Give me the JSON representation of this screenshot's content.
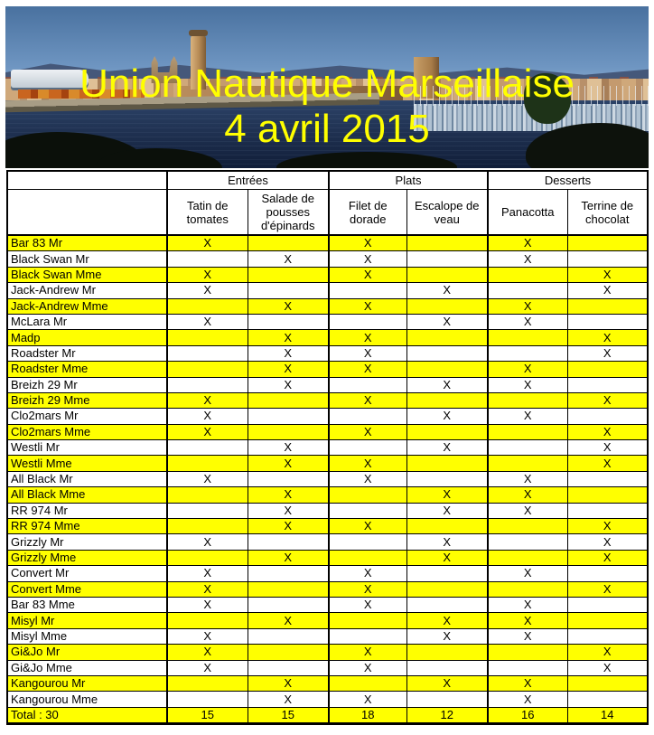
{
  "header": {
    "title_line1": "Union Nautique Marseillaise",
    "title_line2": "4 avril 2015",
    "title_color": "#FFFF00",
    "photo_description": "marseille-vieux-port-panorama"
  },
  "table": {
    "highlight_color": "#FFFF00",
    "mark": "X",
    "groups": [
      {
        "label": "Entrées",
        "span": 2
      },
      {
        "label": "Plats",
        "span": 2
      },
      {
        "label": "Desserts",
        "span": 2
      }
    ],
    "columns": [
      "Tatin de tomates",
      "Salade de pousses d'épinards",
      "Filet de dorade",
      "Escalope de veau",
      "Panacotta",
      "Terrine de chocolat"
    ],
    "rows": [
      {
        "name": "Bar 83 Mr",
        "choices": [
          1,
          0,
          1,
          0,
          1,
          0
        ]
      },
      {
        "name": "Black Swan Mr",
        "choices": [
          0,
          1,
          1,
          0,
          1,
          0
        ]
      },
      {
        "name": "Black Swan Mme",
        "choices": [
          1,
          0,
          1,
          0,
          0,
          1
        ]
      },
      {
        "name": "Jack-Andrew Mr",
        "choices": [
          1,
          0,
          0,
          1,
          0,
          1
        ]
      },
      {
        "name": "Jack-Andrew Mme",
        "choices": [
          0,
          1,
          1,
          0,
          1,
          0
        ]
      },
      {
        "name": "McLara Mr",
        "choices": [
          1,
          0,
          0,
          1,
          1,
          0
        ]
      },
      {
        "name": "Madp",
        "choices": [
          0,
          1,
          1,
          0,
          0,
          1
        ]
      },
      {
        "name": "Roadster Mr",
        "choices": [
          0,
          1,
          1,
          0,
          0,
          1
        ]
      },
      {
        "name": "Roadster Mme",
        "choices": [
          0,
          1,
          1,
          0,
          1,
          0
        ]
      },
      {
        "name": "Breizh 29 Mr",
        "choices": [
          0,
          1,
          0,
          1,
          1,
          0
        ]
      },
      {
        "name": "Breizh 29 Mme",
        "choices": [
          1,
          0,
          1,
          0,
          0,
          1
        ]
      },
      {
        "name": "Clo2mars Mr",
        "choices": [
          1,
          0,
          0,
          1,
          1,
          0
        ]
      },
      {
        "name": "Clo2mars Mme",
        "choices": [
          1,
          0,
          1,
          0,
          0,
          1
        ]
      },
      {
        "name": "Westli Mr",
        "choices": [
          0,
          1,
          0,
          1,
          0,
          1
        ]
      },
      {
        "name": "Westli Mme",
        "choices": [
          0,
          1,
          1,
          0,
          0,
          1
        ]
      },
      {
        "name": "All Black Mr",
        "choices": [
          1,
          0,
          1,
          0,
          1,
          0
        ]
      },
      {
        "name": "All Black Mme",
        "choices": [
          0,
          1,
          0,
          1,
          1,
          0
        ]
      },
      {
        "name": "RR 974 Mr",
        "choices": [
          0,
          1,
          0,
          1,
          1,
          0
        ]
      },
      {
        "name": "RR 974 Mme",
        "choices": [
          0,
          1,
          1,
          0,
          0,
          1
        ]
      },
      {
        "name": "Grizzly Mr",
        "choices": [
          1,
          0,
          0,
          1,
          0,
          1
        ]
      },
      {
        "name": "Grizzly Mme",
        "choices": [
          0,
          1,
          0,
          1,
          0,
          1
        ]
      },
      {
        "name": "Convert Mr",
        "choices": [
          1,
          0,
          1,
          0,
          1,
          0
        ]
      },
      {
        "name": "Convert Mme",
        "choices": [
          1,
          0,
          1,
          0,
          0,
          1
        ]
      },
      {
        "name": "Bar 83 Mme",
        "choices": [
          1,
          0,
          1,
          0,
          1,
          0
        ]
      },
      {
        "name": "Misyl Mr",
        "choices": [
          0,
          1,
          0,
          1,
          1,
          0
        ]
      },
      {
        "name": "Misyl Mme",
        "choices": [
          1,
          0,
          0,
          1,
          1,
          0
        ]
      },
      {
        "name": "Gi&Jo Mr",
        "choices": [
          1,
          0,
          1,
          0,
          0,
          1
        ]
      },
      {
        "name": "Gi&Jo Mme",
        "choices": [
          1,
          0,
          1,
          0,
          0,
          1
        ]
      },
      {
        "name": "Kangourou Mr",
        "choices": [
          0,
          1,
          0,
          1,
          1,
          0
        ]
      },
      {
        "name": "Kangourou Mme",
        "choices": [
          0,
          1,
          1,
          0,
          1,
          0
        ]
      }
    ],
    "total": {
      "label": "Total : 30",
      "values": [
        15,
        15,
        18,
        12,
        16,
        14
      ]
    }
  }
}
